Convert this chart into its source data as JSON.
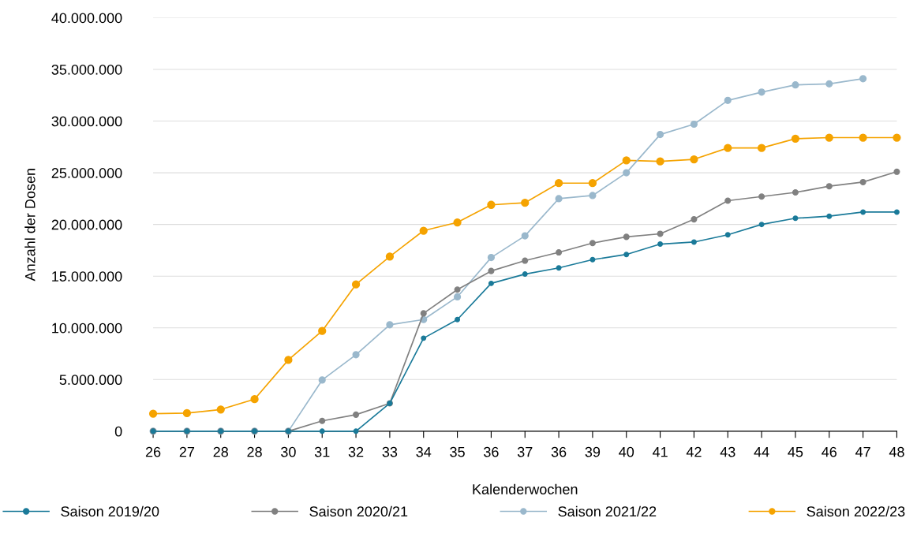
{
  "chart_data": {
    "type": "line",
    "xlabel": "Kalenderwochen",
    "ylabel": "Anzahl der Dosen",
    "categories": [
      "26",
      "27",
      "28",
      "28",
      "30",
      "31",
      "32",
      "33",
      "34",
      "35",
      "36",
      "37",
      "36",
      "39",
      "40",
      "41",
      "42",
      "43",
      "44",
      "45",
      "46",
      "47",
      "48"
    ],
    "ylim": [
      0,
      40000000
    ],
    "yticks": [
      {
        "value": 0,
        "label": "0"
      },
      {
        "value": 5000000,
        "label": "5.000.000"
      },
      {
        "value": 10000000,
        "label": "10.000.000"
      },
      {
        "value": 15000000,
        "label": "15.000.000"
      },
      {
        "value": 20000000,
        "label": "20.000.000"
      },
      {
        "value": 25000000,
        "label": "25.000.000"
      },
      {
        "value": 30000000,
        "label": "30.000.000"
      },
      {
        "value": 35000000,
        "label": "35.000.000"
      },
      {
        "value": 40000000,
        "label": "40.000.000"
      }
    ],
    "grid": "y",
    "legend": "bottom",
    "marker": "circle",
    "series": [
      {
        "name": "Saison 2019/20",
        "color": "#1a7a99",
        "values": [
          0,
          0,
          0,
          0,
          0,
          0,
          0,
          2700000,
          9000000,
          10800000,
          14300000,
          15200000,
          15800000,
          16600000,
          17100000,
          18100000,
          18300000,
          19000000,
          20000000,
          20600000,
          20800000,
          21200000,
          21200000
        ]
      },
      {
        "name": "Saison 2020/21",
        "color": "#808080",
        "values": [
          0,
          0,
          0,
          0,
          0,
          1000000,
          1600000,
          2700000,
          11400000,
          13700000,
          15500000,
          16500000,
          17300000,
          18200000,
          18800000,
          19100000,
          20500000,
          22300000,
          22700000,
          23100000,
          23700000,
          24100000,
          25100000
        ]
      },
      {
        "name": "Saison 2021/22",
        "color": "#9ab8cc",
        "values": [
          0,
          0,
          0,
          0,
          0,
          4950000,
          7400000,
          10300000,
          10800000,
          13000000,
          16800000,
          18900000,
          22500000,
          22800000,
          25000000,
          28700000,
          29700000,
          32000000,
          32800000,
          33500000,
          33600000,
          34100000,
          null
        ]
      },
      {
        "name": "Saison 2022/23",
        "color": "#f5a300",
        "values": [
          1700000,
          1750000,
          2100000,
          3100000,
          6900000,
          9700000,
          14200000,
          16900000,
          19400000,
          20200000,
          21900000,
          22100000,
          24000000,
          24000000,
          26200000,
          26100000,
          26300000,
          27400000,
          27400000,
          28300000,
          28400000,
          28400000,
          28400000
        ]
      }
    ]
  }
}
